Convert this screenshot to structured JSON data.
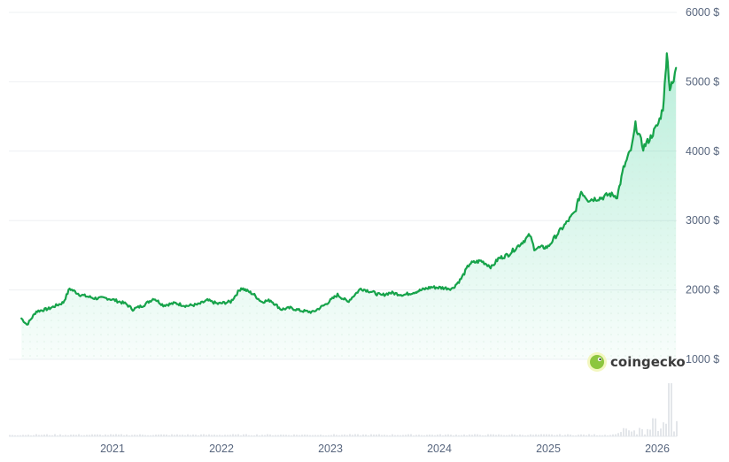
{
  "colors": {
    "line": "#16a34a",
    "area_top": "#16c784",
    "grid": "#eef0f3",
    "tick_text": "#58667e",
    "volume": "#e3e6ea"
  },
  "watermark": {
    "text": "coingecko",
    "icon": "gecko-icon"
  },
  "chart_data": {
    "type": "area",
    "title": "",
    "xlabel": "",
    "ylabel": "",
    "y_unit": "$",
    "ylim": [
      1000,
      6000
    ],
    "y_ticks": [
      1000,
      2000,
      3000,
      4000,
      5000,
      6000
    ],
    "y_tick_labels": [
      "1000 $",
      "2000 $",
      "3000 $",
      "4000 $",
      "5000 $",
      "6000 $"
    ],
    "x_tick_labels": [
      "2021",
      "2022",
      "2023",
      "2024",
      "2025",
      "2026"
    ],
    "grid": true,
    "legend": "none",
    "series": [
      {
        "x": [
          "2020-03-01",
          "2020-03-20",
          "2020-04-20",
          "2020-06-01",
          "2020-07-20",
          "2020-08-10",
          "2020-09-15",
          "2020-11-01",
          "2020-12-15",
          "2021-01-10",
          "2021-02-15",
          "2021-03-10",
          "2021-04-15",
          "2021-05-20",
          "2021-06-20",
          "2021-08-01",
          "2021-09-05",
          "2021-10-15",
          "2021-11-15",
          "2021-12-20",
          "2022-02-01",
          "2022-03-08",
          "2022-04-18",
          "2022-05-15",
          "2022-06-15",
          "2022-07-20",
          "2022-08-20",
          "2022-09-25",
          "2022-11-03",
          "2022-12-15",
          "2023-01-25",
          "2023-02-28",
          "2023-04-13",
          "2023-05-15",
          "2023-06-20",
          "2023-07-20",
          "2023-09-05",
          "2023-10-27",
          "2023-12-04",
          "2024-01-15",
          "2024-02-14",
          "2024-03-14",
          "2024-04-12",
          "2024-05-20",
          "2024-06-25",
          "2024-07-17",
          "2024-08-20",
          "2024-09-26",
          "2024-10-31",
          "2024-11-15",
          "2024-12-31",
          "2025-01-30",
          "2025-02-24",
          "2025-03-31",
          "2025-04-21",
          "2025-05-15",
          "2025-06-30",
          "2025-07-25",
          "2025-08-20",
          "2025-09-10",
          "2025-10-08",
          "2025-10-20",
          "2025-11-15",
          "2025-12-10",
          "2026-01-05",
          "2026-01-20",
          "2026-01-29",
          "2026-02-02",
          "2026-02-12",
          "2026-02-25",
          "2026-03-05"
        ],
        "values": [
          1590,
          1500,
          1690,
          1730,
          1820,
          2020,
          1930,
          1880,
          1880,
          1850,
          1800,
          1720,
          1780,
          1880,
          1780,
          1810,
          1770,
          1790,
          1850,
          1800,
          1830,
          2030,
          1940,
          1830,
          1850,
          1720,
          1740,
          1700,
          1680,
          1790,
          1930,
          1830,
          2020,
          1980,
          1920,
          1960,
          1930,
          1990,
          2040,
          2030,
          2020,
          2160,
          2380,
          2420,
          2330,
          2450,
          2510,
          2650,
          2790,
          2600,
          2620,
          2800,
          2930,
          3120,
          3420,
          3300,
          3330,
          3380,
          3350,
          3750,
          4060,
          4380,
          4050,
          4200,
          4400,
          4620,
          5100,
          5450,
          4900,
          5000,
          5200
        ]
      }
    ]
  }
}
